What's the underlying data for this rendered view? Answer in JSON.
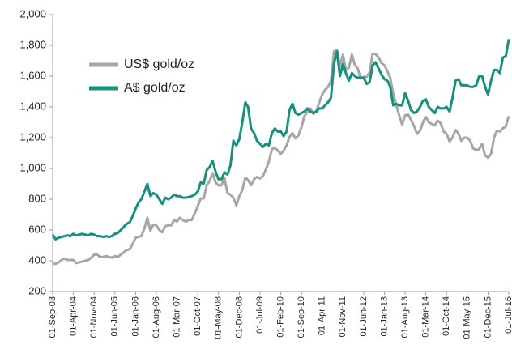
{
  "chart_data": {
    "type": "line",
    "x": [
      "2003-09-01",
      "2003-10-01",
      "2003-11-01",
      "2003-12-01",
      "2004-01-01",
      "2004-02-01",
      "2004-03-01",
      "2004-04-01",
      "2004-05-01",
      "2004-06-01",
      "2004-07-01",
      "2004-08-01",
      "2004-09-01",
      "2004-10-01",
      "2004-11-01",
      "2004-12-01",
      "2005-01-01",
      "2005-02-01",
      "2005-03-01",
      "2005-04-01",
      "2005-05-01",
      "2005-06-01",
      "2005-07-01",
      "2005-08-01",
      "2005-09-01",
      "2005-10-01",
      "2005-11-01",
      "2005-12-01",
      "2006-01-01",
      "2006-02-01",
      "2006-03-01",
      "2006-04-01",
      "2006-05-01",
      "2006-06-01",
      "2006-07-01",
      "2006-08-01",
      "2006-09-01",
      "2006-10-01",
      "2006-11-01",
      "2006-12-01",
      "2007-01-01",
      "2007-02-01",
      "2007-03-01",
      "2007-04-01",
      "2007-05-01",
      "2007-06-01",
      "2007-07-01",
      "2007-08-01",
      "2007-09-01",
      "2007-10-01",
      "2007-11-01",
      "2007-12-01",
      "2008-01-01",
      "2008-02-01",
      "2008-03-01",
      "2008-04-01",
      "2008-05-01",
      "2008-06-01",
      "2008-07-01",
      "2008-08-01",
      "2008-09-01",
      "2008-10-01",
      "2008-11-01",
      "2008-12-01",
      "2009-01-01",
      "2009-02-01",
      "2009-03-01",
      "2009-04-01",
      "2009-05-01",
      "2009-06-01",
      "2009-07-01",
      "2009-08-01",
      "2009-09-01",
      "2009-10-01",
      "2009-11-01",
      "2009-12-01",
      "2010-01-01",
      "2010-02-01",
      "2010-03-01",
      "2010-04-01",
      "2010-05-01",
      "2010-06-01",
      "2010-07-01",
      "2010-08-01",
      "2010-09-01",
      "2010-10-01",
      "2010-11-01",
      "2010-12-01",
      "2011-01-01",
      "2011-02-01",
      "2011-03-01",
      "2011-04-01",
      "2011-05-01",
      "2011-06-01",
      "2011-07-01",
      "2011-08-01",
      "2011-09-01",
      "2011-10-01",
      "2011-11-01",
      "2011-12-01",
      "2012-01-01",
      "2012-02-01",
      "2012-03-01",
      "2012-04-01",
      "2012-05-01",
      "2012-06-01",
      "2012-07-01",
      "2012-08-01",
      "2012-09-01",
      "2012-10-01",
      "2012-11-01",
      "2012-12-01",
      "2013-01-01",
      "2013-02-01",
      "2013-03-01",
      "2013-04-01",
      "2013-05-01",
      "2013-06-01",
      "2013-07-01",
      "2013-08-01",
      "2013-09-01",
      "2013-10-01",
      "2013-11-01",
      "2013-12-01",
      "2014-01-01",
      "2014-02-01",
      "2014-03-01",
      "2014-04-01",
      "2014-05-01",
      "2014-06-01",
      "2014-07-01",
      "2014-08-01",
      "2014-09-01",
      "2014-10-01",
      "2014-11-01",
      "2014-12-01",
      "2015-01-01",
      "2015-02-01",
      "2015-03-01",
      "2015-04-01",
      "2015-05-01",
      "2015-06-01",
      "2015-07-01",
      "2015-08-01",
      "2015-09-01",
      "2015-10-01",
      "2015-11-01",
      "2015-12-01",
      "2016-01-01",
      "2016-02-01",
      "2016-03-01",
      "2016-04-01",
      "2016-05-01",
      "2016-06-01",
      "2016-07-01"
    ],
    "series": [
      {
        "name": "US$ gold/oz",
        "color": "#a6a6a6",
        "values": [
          380,
          380,
          390,
          405,
          415,
          405,
          405,
          405,
          385,
          390,
          395,
          400,
          405,
          420,
          440,
          440,
          425,
          425,
          430,
          425,
          420,
          430,
          425,
          440,
          455,
          470,
          475,
          510,
          550,
          555,
          560,
          610,
          680,
          595,
          635,
          630,
          600,
          585,
          625,
          630,
          630,
          665,
          655,
          680,
          665,
          655,
          665,
          665,
          710,
          755,
          805,
          805,
          890,
          920,
          970,
          910,
          890,
          890,
          940,
          840,
          830,
          810,
          760,
          820,
          860,
          940,
          925,
          890,
          930,
          945,
          935,
          950,
          995,
          1045,
          1125,
          1135,
          1115,
          1095,
          1115,
          1150,
          1205,
          1230,
          1195,
          1215,
          1270,
          1340,
          1370,
          1390,
          1355,
          1375,
          1425,
          1480,
          1510,
          1530,
          1570,
          1760,
          1770,
          1665,
          1740,
          1640,
          1655,
          1740,
          1675,
          1650,
          1585,
          1595,
          1595,
          1625,
          1745,
          1745,
          1720,
          1685,
          1670,
          1630,
          1590,
          1485,
          1415,
          1345,
          1285,
          1345,
          1350,
          1315,
          1275,
          1225,
          1245,
          1300,
          1335,
          1300,
          1290,
          1280,
          1310,
          1295,
          1240,
          1225,
          1175,
          1200,
          1250,
          1225,
          1180,
          1200,
          1200,
          1180,
          1130,
          1120,
          1125,
          1160,
          1085,
          1070,
          1095,
          1200,
          1245,
          1240,
          1260,
          1275,
          1340
        ]
      },
      {
        "name": "A$ gold/oz",
        "color": "#17907e",
        "values": [
          570,
          540,
          550,
          555,
          560,
          565,
          560,
          575,
          565,
          570,
          575,
          570,
          565,
          575,
          570,
          560,
          560,
          555,
          560,
          555,
          560,
          575,
          580,
          600,
          620,
          640,
          650,
          690,
          740,
          780,
          800,
          850,
          900,
          820,
          840,
          830,
          800,
          770,
          810,
          800,
          810,
          830,
          820,
          820,
          810,
          810,
          815,
          820,
          830,
          850,
          910,
          900,
          990,
          1010,
          1050,
          980,
          930,
          930,
          975,
          960,
          1020,
          1180,
          1150,
          1190,
          1300,
          1430,
          1400,
          1260,
          1230,
          1180,
          1160,
          1140,
          1160,
          1150,
          1230,
          1260,
          1240,
          1240,
          1210,
          1240,
          1380,
          1420,
          1360,
          1350,
          1360,
          1370,
          1390,
          1370,
          1360,
          1370,
          1390,
          1390,
          1410,
          1430,
          1460,
          1680,
          1760,
          1600,
          1680,
          1620,
          1570,
          1620,
          1600,
          1590,
          1590,
          1590,
          1550,
          1560,
          1670,
          1690,
          1650,
          1610,
          1580,
          1570,
          1530,
          1410,
          1420,
          1410,
          1410,
          1490,
          1440,
          1380,
          1360,
          1370,
          1400,
          1440,
          1450,
          1400,
          1380,
          1360,
          1400,
          1390,
          1390,
          1400,
          1370,
          1460,
          1570,
          1580,
          1540,
          1540,
          1540,
          1530,
          1530,
          1540,
          1600,
          1600,
          1530,
          1480,
          1570,
          1640,
          1640,
          1620,
          1720,
          1730,
          1840
        ]
      }
    ],
    "xlim": [
      "2003-09-01",
      "2016-07-01"
    ],
    "xticks": [
      {
        "value": "2003-09-01",
        "label": "01-Sep-03"
      },
      {
        "value": "2004-04-01",
        "label": "01-Apr-04"
      },
      {
        "value": "2004-11-01",
        "label": "01-Nov-04"
      },
      {
        "value": "2005-06-01",
        "label": "01-Jun-05"
      },
      {
        "value": "2006-01-01",
        "label": "01-Jan-06"
      },
      {
        "value": "2006-08-01",
        "label": "01-Aug-06"
      },
      {
        "value": "2007-03-01",
        "label": "01-Mar-07"
      },
      {
        "value": "2007-10-01",
        "label": "01-Oct-07"
      },
      {
        "value": "2008-05-01",
        "label": "01-May-08"
      },
      {
        "value": "2008-12-01",
        "label": "01-Dec-08"
      },
      {
        "value": "2009-07-01",
        "label": "01-Jul-09"
      },
      {
        "value": "2010-02-01",
        "label": "01-Feb-10"
      },
      {
        "value": "2010-09-01",
        "label": "01-Sep-10"
      },
      {
        "value": "2011-04-01",
        "label": "01-Apr-11"
      },
      {
        "value": "2011-11-01",
        "label": "01-Nov-11"
      },
      {
        "value": "2012-06-01",
        "label": "01-Jun-12"
      },
      {
        "value": "2013-01-01",
        "label": "01-Jan-13"
      },
      {
        "value": "2013-08-01",
        "label": "01-Aug-13"
      },
      {
        "value": "2014-03-01",
        "label": "01-Mar-14"
      },
      {
        "value": "2014-10-01",
        "label": "01-Oct-14"
      },
      {
        "value": "2015-05-01",
        "label": "01-May-15"
      },
      {
        "value": "2015-12-01",
        "label": "01-Dec-15"
      },
      {
        "value": "2016-07-01",
        "label": "01-Jul-16"
      }
    ],
    "ylim": [
      200,
      2000
    ],
    "yticks": [
      200,
      400,
      600,
      800,
      {
        "value": 1000,
        "label": "1,000"
      },
      {
        "value": 1200,
        "label": "1,200"
      },
      {
        "value": 1400,
        "label": "1,400"
      },
      {
        "value": 1600,
        "label": "1,600"
      },
      {
        "value": 1800,
        "label": "1,800"
      },
      {
        "value": 2000,
        "label": "2,000"
      }
    ],
    "grid": false,
    "legend": "upper left"
  }
}
